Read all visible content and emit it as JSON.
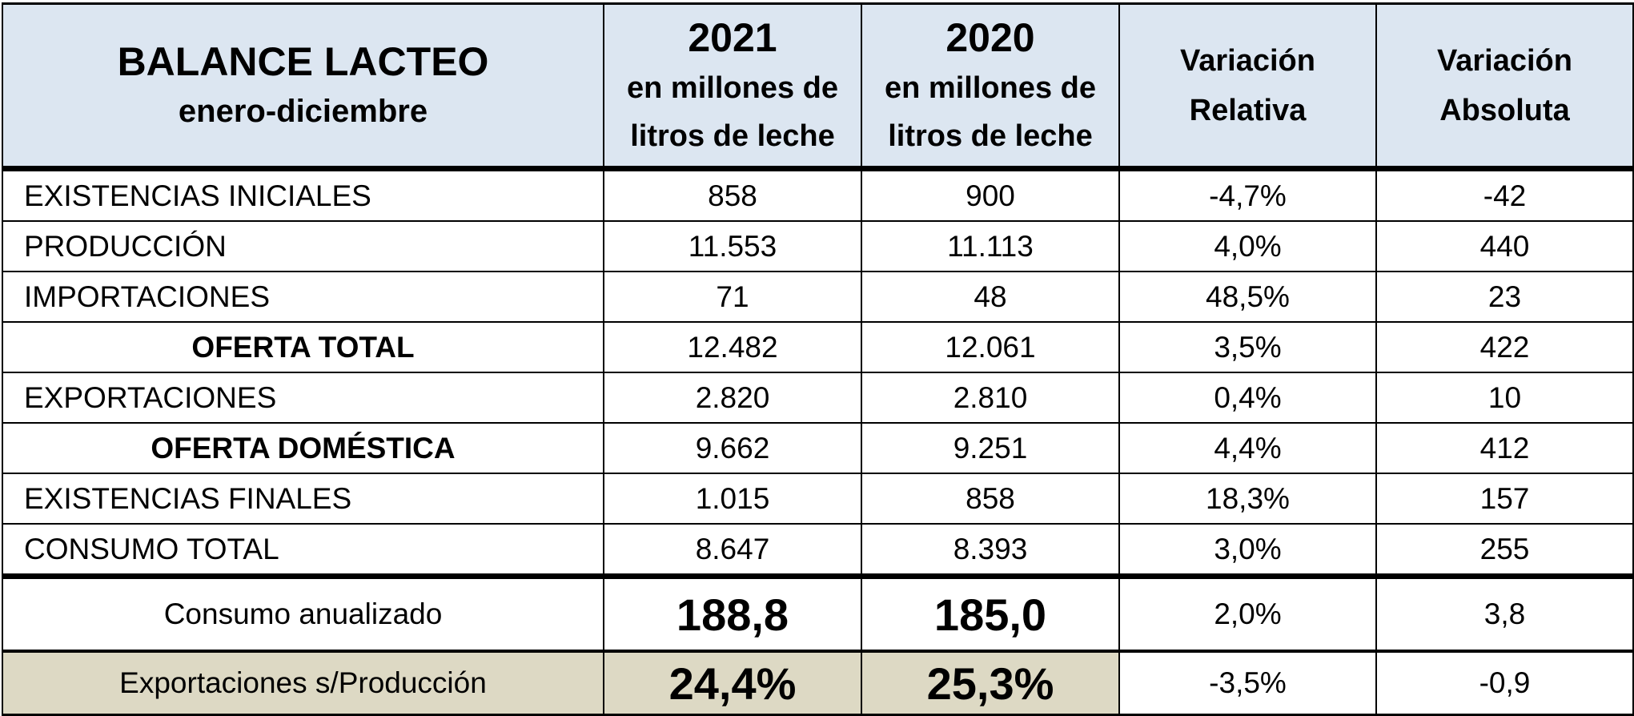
{
  "header": {
    "title": "BALANCE LACTEO",
    "subtitle": "enero-diciembre",
    "col_2021_year": "2021",
    "col_2021_unit_line1": "en millones de",
    "col_2021_unit_line2": "litros de leche",
    "col_2020_year": "2020",
    "col_2020_unit_line1": "en millones de",
    "col_2020_unit_line2": "litros de leche",
    "var_rel_line1": "Variación",
    "var_rel_line2": "Relativa",
    "var_abs_line1": "Variación",
    "var_abs_line2": "Absoluta"
  },
  "rows": [
    {
      "label": "EXISTENCIAS  INICIALES",
      "v2021": "858",
      "v2020": "900",
      "var_rel": "-4,7%",
      "var_abs": "-42"
    },
    {
      "label": "PRODUCCIÓN",
      "v2021": "11.553",
      "v2020": "11.113",
      "var_rel": "4,0%",
      "var_abs": "440"
    },
    {
      "label": "IMPORTACIONES",
      "v2021": "71",
      "v2020": "48",
      "var_rel": "48,5%",
      "var_abs": "23"
    },
    {
      "label": "OFERTA TOTAL",
      "v2021": "12.482",
      "v2020": "12.061",
      "var_rel": "3,5%",
      "var_abs": "422"
    },
    {
      "label": "EXPORTACIONES",
      "v2021": "2.820",
      "v2020": "2.810",
      "var_rel": "0,4%",
      "var_abs": "10"
    },
    {
      "label": "OFERTA DOMÉSTICA",
      "v2021": "9.662",
      "v2020": "9.251",
      "var_rel": "4,4%",
      "var_abs": "412"
    },
    {
      "label": "EXISTENCIAS FINALES",
      "v2021": "1.015",
      "v2020": "858",
      "var_rel": "18,3%",
      "var_abs": "157"
    },
    {
      "label": "CONSUMO TOTAL",
      "v2021": "8.647",
      "v2020": "8.393",
      "var_rel": "3,0%",
      "var_abs": "255"
    }
  ],
  "consumo": {
    "label": "Consumo anualizado",
    "v2021": "188,8",
    "v2020": "185,0",
    "var_rel": "2,0%",
    "var_abs": "3,8"
  },
  "export_ratio": {
    "label": "Exportaciones s/Producción",
    "v2021": "24,4%",
    "v2020": "25,3%",
    "var_rel": "-3,5%",
    "var_abs": "-0,9"
  },
  "colors": {
    "header_bg": "#dce6f1",
    "footer_bg": "#ddd9c4"
  }
}
